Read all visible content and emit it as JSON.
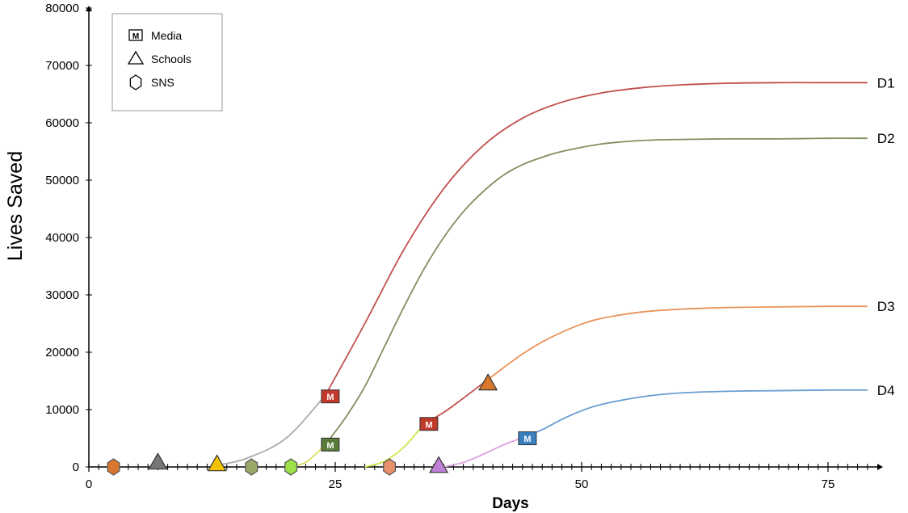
{
  "chart_data": {
    "type": "line",
    "title": "",
    "xlabel": "Days",
    "ylabel": "Lives Saved",
    "xlim": [
      0,
      80
    ],
    "ylim": [
      0,
      80000
    ],
    "x_ticks": [
      0,
      25,
      50,
      75
    ],
    "y_ticks": [
      0,
      10000,
      20000,
      30000,
      40000,
      50000,
      60000,
      70000,
      80000
    ],
    "grid": false,
    "legend": {
      "position": "top-left",
      "entries": [
        {
          "name": "Media",
          "marker": "square-m"
        },
        {
          "name": "Schools",
          "marker": "triangle"
        },
        {
          "name": "SNS",
          "marker": "hexagon"
        }
      ]
    },
    "series": [
      {
        "name": "D1",
        "color": "#c0504d",
        "x": [
          13,
          16,
          20,
          24,
          28,
          32,
          36,
          40,
          44,
          48,
          52,
          56,
          60,
          65,
          70,
          75,
          79
        ],
        "y": [
          300,
          1500,
          5000,
          12500,
          25000,
          38000,
          48500,
          56000,
          60800,
          63600,
          65200,
          66100,
          66600,
          66900,
          67000,
          67000,
          67000
        ],
        "line_segments": [
          {
            "from": 13,
            "to": 24,
            "color": "#aaaaaa"
          }
        ]
      },
      {
        "name": "D2",
        "color": "#7f9060",
        "x": [
          20,
          22,
          24,
          26,
          28,
          30,
          32,
          34,
          36,
          38,
          40,
          42,
          44,
          46,
          48,
          52,
          56,
          60,
          65,
          70,
          75,
          79
        ],
        "y": [
          0,
          800,
          3900,
          8500,
          14000,
          21000,
          28000,
          34500,
          40000,
          44500,
          48000,
          50800,
          52700,
          54000,
          55000,
          56300,
          56900,
          57100,
          57200,
          57200,
          57300,
          57300
        ],
        "line_segments": [
          {
            "from": 20,
            "to": 24,
            "color": "#dddd66"
          }
        ]
      },
      {
        "name": "D3",
        "color": "#e8935a",
        "x": [
          28,
          30,
          32,
          34,
          36,
          38,
          40,
          42,
          44,
          46,
          48,
          50,
          52,
          56,
          60,
          65,
          70,
          75,
          79
        ],
        "y": [
          0,
          1000,
          3500,
          7500,
          9500,
          12000,
          14600,
          17200,
          19700,
          21800,
          23500,
          24900,
          25900,
          27000,
          27500,
          27800,
          27900,
          28000,
          28000
        ],
        "line_segments": [
          {
            "from": 28,
            "to": 34,
            "color": "#c8e84a"
          },
          {
            "from": 34,
            "to": 40,
            "color": "#c0504d"
          }
        ]
      },
      {
        "name": "D4",
        "color": "#6a9ed0",
        "x": [
          36,
          38,
          40,
          42,
          44,
          46,
          48,
          50,
          52,
          56,
          60,
          65,
          70,
          75,
          79
        ],
        "y": [
          0,
          800,
          2200,
          3800,
          5100,
          6500,
          8300,
          9800,
          10900,
          12200,
          12900,
          13200,
          13300,
          13400,
          13400
        ],
        "line_segments": [
          {
            "from": 36,
            "to": 44,
            "color": "#e0a0e0"
          }
        ]
      }
    ],
    "markers": [
      {
        "x": 2.5,
        "y": 0,
        "shape": "hexagon",
        "fill": "#d9772e"
      },
      {
        "x": 7,
        "y": 800,
        "shape": "triangle",
        "fill": "#777777"
      },
      {
        "x": 13,
        "y": 500,
        "shape": "triangle",
        "fill": "#f2c200"
      },
      {
        "x": 16.5,
        "y": 0,
        "shape": "hexagon",
        "fill": "#9aa86a"
      },
      {
        "x": 20.5,
        "y": 0,
        "shape": "hexagon",
        "fill": "#9ee04a"
      },
      {
        "x": 24.5,
        "y": 12300,
        "shape": "square-m",
        "fill": "#c0392b"
      },
      {
        "x": 24.5,
        "y": 3900,
        "shape": "square-m",
        "fill": "#5a7a3a"
      },
      {
        "x": 30.5,
        "y": 0,
        "shape": "hexagon",
        "fill": "#e8906a"
      },
      {
        "x": 34.5,
        "y": 7500,
        "shape": "square-m",
        "fill": "#c0392b"
      },
      {
        "x": 35.5,
        "y": 200,
        "shape": "triangle",
        "fill": "#c080d8"
      },
      {
        "x": 40.5,
        "y": 14600,
        "shape": "triangle",
        "fill": "#d9772e"
      },
      {
        "x": 44.5,
        "y": 5000,
        "shape": "square-m",
        "fill": "#3a7fc0"
      }
    ],
    "marker_letter": "M"
  }
}
